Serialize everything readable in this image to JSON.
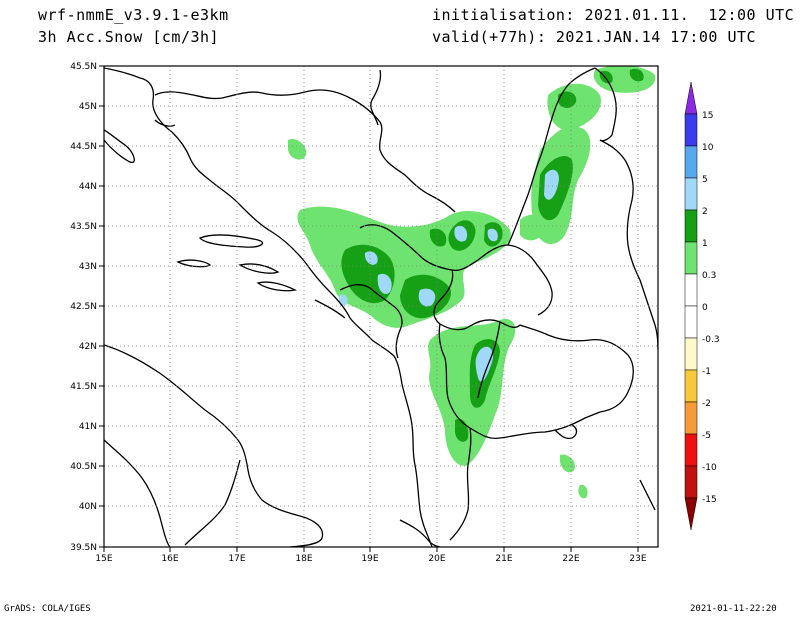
{
  "header": {
    "model": "wrf-nmmE_v3.9.1-e3km",
    "field": "3h Acc.Snow [cm/3h]",
    "init": "initialisation: 2021.01.11.  12:00 UTC",
    "valid": "valid(+77h): 2021.JAN.14 17:00 UTC"
  },
  "map": {
    "lat_labels": [
      "45.5N",
      "45N",
      "44.5N",
      "44N",
      "43.5N",
      "43N",
      "42.5N",
      "42N",
      "41.5N",
      "41N",
      "40.5N",
      "40N",
      "39.5N"
    ],
    "lon_labels": [
      "15E",
      "16E",
      "17E",
      "18E",
      "19E",
      "20E",
      "21E",
      "22E",
      "23E"
    ],
    "lat_range": [
      39.5,
      45.5
    ],
    "lon_range": [
      15,
      23.3
    ],
    "grid": true
  },
  "colorbar": {
    "labels": [
      "15",
      "10",
      "5",
      "2",
      "1",
      "0.3",
      "0",
      "-0.3",
      "-1",
      "-2",
      "-5",
      "-10",
      "-15"
    ],
    "colors": [
      "#8a2be2",
      "#3b3bf0",
      "#58a8f0",
      "#a0d8f8",
      "#16a016",
      "#6fe36f",
      "#ffffff",
      "#ffffff",
      "#fff8c8",
      "#f8c83c",
      "#f89a38",
      "#f01010",
      "#c01010",
      "#8b0000"
    ]
  },
  "footer": {
    "left": "GrADS: COLA/IGES",
    "right": "2021-01-11-22:20"
  }
}
